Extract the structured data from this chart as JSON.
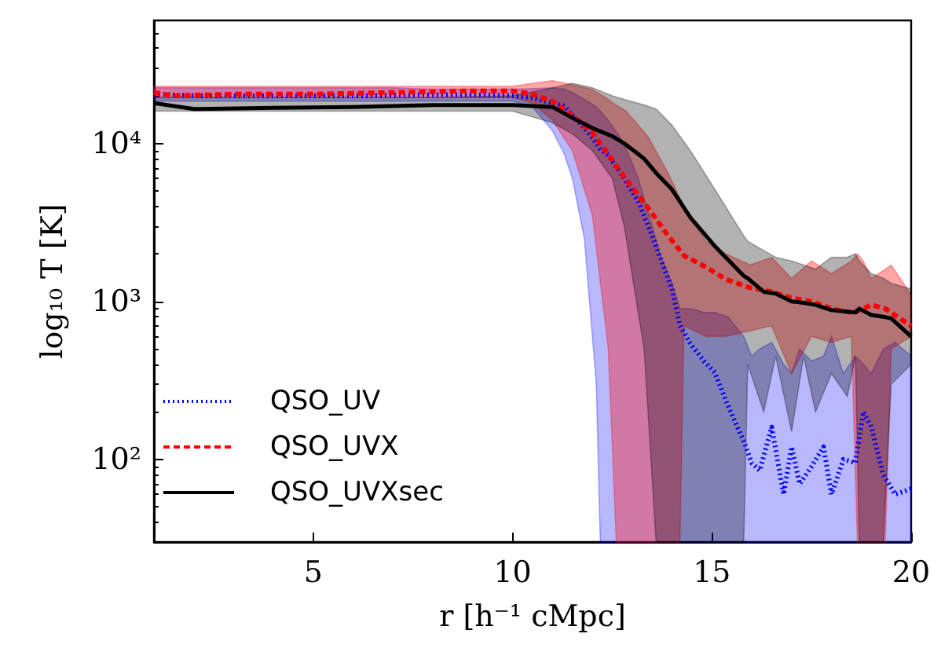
{
  "chart_data": {
    "type": "line",
    "xlabel": "r [h⁻¹ cMpc]",
    "ylabel": "log₁₀ T [K]",
    "xlim": [
      1,
      20
    ],
    "xticks": [
      5,
      10,
      15,
      20
    ],
    "ylim": [
      30,
      60000
    ],
    "log": "y",
    "yticks": [
      {
        "value": 100,
        "label": "10²"
      },
      {
        "value": 1000,
        "label": "10³"
      },
      {
        "value": 10000,
        "label": "10⁴"
      }
    ],
    "grid": false,
    "legend": "bottom left",
    "marker": "none",
    "series": [
      {
        "name": "QSO_UV",
        "color": "#0000ff",
        "line_style": "dotted",
        "x": [
          1,
          2,
          3,
          4,
          5,
          6,
          7,
          8,
          9,
          10,
          10.5,
          11,
          11.3,
          11.5,
          11.8,
          12.1,
          12.2,
          12.4,
          12.8,
          13.15,
          13.5,
          13.7,
          14.0,
          14.2,
          14.46,
          14.8,
          15.07,
          15.4,
          15.8,
          16.0,
          16.2,
          16.5,
          16.8,
          17.0,
          17.2,
          17.5,
          17.8,
          18.0,
          18.3,
          18.6,
          18.8,
          19.0,
          19.3,
          19.6,
          20
        ],
        "values": [
          20500,
          20000,
          20000,
          20000,
          20000,
          20000,
          20200,
          20300,
          20300,
          20000,
          19500,
          18000,
          17200,
          15000,
          12500,
          10000,
          9200,
          8400,
          6000,
          4300,
          2600,
          1900,
          1200,
          700,
          540,
          420,
          355,
          220,
          130,
          95,
          85,
          160,
          60,
          120,
          70,
          90,
          120,
          60,
          100,
          95,
          200,
          160,
          80,
          60,
          65
        ],
        "lower": [
          18500,
          18500,
          18500,
          18500,
          18500,
          18500,
          18500,
          18500,
          18500,
          18500,
          17000,
          12000,
          8500,
          6000,
          2500,
          300,
          30,
          30,
          30,
          30,
          30,
          30,
          30,
          30,
          30,
          30,
          30,
          30,
          30,
          30,
          30,
          30,
          30,
          30,
          30,
          30,
          30,
          30,
          30,
          30,
          30,
          30,
          30,
          30,
          30
        ],
        "upper": [
          22500,
          22500,
          22500,
          22500,
          22500,
          22500,
          22500,
          22000,
          22000,
          22000,
          22200,
          22500,
          22000,
          21000,
          19000,
          17000,
          16000,
          14000,
          10000,
          6000,
          3000,
          2000,
          1300,
          900,
          900,
          850,
          850,
          800,
          600,
          450,
          500,
          550,
          400,
          350,
          500,
          420,
          450,
          600,
          350,
          450,
          400,
          350,
          500,
          550,
          450
        ]
      },
      {
        "name": "QSO_UVX",
        "color": "#ff0000",
        "line_style": "dashed",
        "x": [
          1,
          1.5,
          3,
          5,
          7,
          9,
          10,
          10.5,
          11,
          11.5,
          12.0,
          12.4,
          12.6,
          12.85,
          13.4,
          13.9,
          14.2,
          14.3,
          14.85,
          15.35,
          15.96,
          16.5,
          17,
          17.5,
          18,
          18.5,
          18.65,
          18.8,
          19,
          19.35,
          19.5,
          20
        ],
        "values": [
          21000,
          20000,
          20500,
          20500,
          21000,
          21500,
          21500,
          20500,
          18500,
          15000,
          11700,
          8500,
          7200,
          5900,
          3900,
          2600,
          2100,
          1950,
          1650,
          1380,
          1220,
          1150,
          1050,
          1000,
          900,
          850,
          870,
          900,
          950,
          900,
          850,
          700
        ],
        "lower": [
          19500,
          19500,
          19500,
          19500,
          19500,
          19500,
          19500,
          18000,
          14000,
          9000,
          3500,
          500,
          30,
          30,
          30,
          30,
          30,
          700,
          600,
          600,
          650,
          700,
          350,
          600,
          550,
          600,
          30,
          30,
          30,
          30,
          500,
          600
        ],
        "upper": [
          23000,
          23000,
          23000,
          23000,
          23000,
          23000,
          23000,
          24000,
          25000,
          23500,
          22000,
          19000,
          17500,
          16000,
          11000,
          6500,
          4500,
          4000,
          2400,
          2000,
          1700,
          1900,
          1400,
          1800,
          1500,
          1800,
          2000,
          1800,
          1400,
          1600,
          1700,
          1100
        ]
      },
      {
        "name": "QSO_UVXsec",
        "color": "#000000",
        "line_style": "solid",
        "x": [
          1,
          2,
          4,
          6,
          8,
          10,
          11,
          11.5,
          12,
          12.5,
          12.8,
          13.3,
          13.6,
          14.0,
          14.46,
          15.1,
          15.8,
          15.9,
          16.3,
          16.6,
          17.0,
          17.3,
          17.6,
          18,
          18.4,
          18.6,
          18.7,
          19,
          19.3,
          19.5,
          20
        ],
        "values": [
          18000,
          16500,
          16800,
          17000,
          17500,
          17500,
          17000,
          14500,
          12500,
          11100,
          10000,
          8000,
          6500,
          5100,
          3400,
          2200,
          1450,
          1400,
          1150,
          1120,
          1000,
          980,
          950,
          880,
          860,
          850,
          900,
          820,
          800,
          780,
          600
        ],
        "lower": [
          16000,
          16000,
          16000,
          16000,
          16000,
          16000,
          13500,
          11500,
          9000,
          6000,
          3000,
          500,
          30,
          30,
          30,
          30,
          30,
          400,
          200,
          450,
          150,
          450,
          200,
          350,
          250,
          450,
          30,
          30,
          30,
          300,
          400
        ],
        "upper": [
          19500,
          19500,
          19500,
          19500,
          19500,
          20000,
          22500,
          24000,
          22500,
          20000,
          19000,
          17500,
          16500,
          13000,
          9000,
          5000,
          2600,
          2400,
          2100,
          1900,
          1800,
          1700,
          1600,
          1900,
          1900,
          2000,
          1800,
          1500,
          1400,
          1300,
          1200
        ]
      }
    ]
  }
}
